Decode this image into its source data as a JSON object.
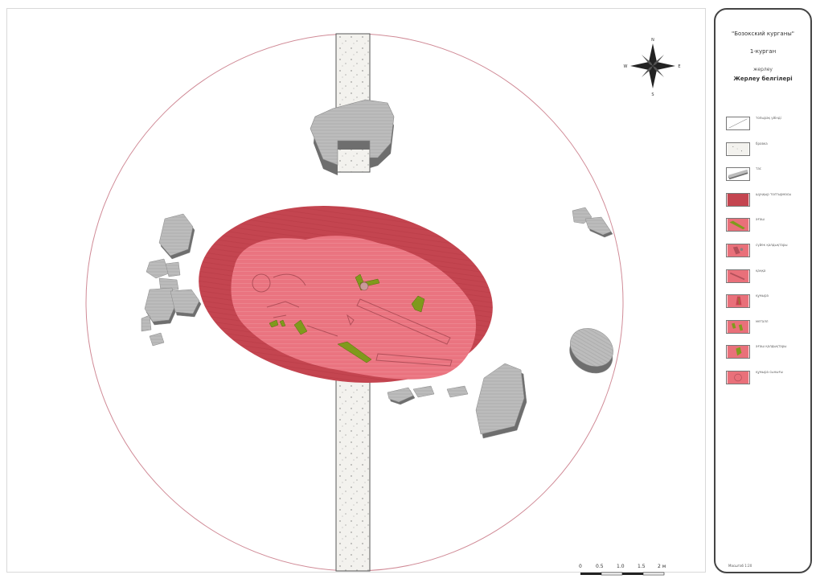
{
  "legend": {
    "site": "\"Бозокский курганы\"",
    "kurgan": "1-курган",
    "grave": "жерлеу",
    "title": "Жерлеу белгілері",
    "items": [
      {
        "label": "топырақ үйінді",
        "swatch": "soil-mound"
      },
      {
        "label": "бровка",
        "swatch": "balk"
      },
      {
        "label": "тас",
        "swatch": "stone"
      },
      {
        "label": "шұңқыр толтырмасы",
        "swatch": "pit-fill"
      },
      {
        "label": "ағаш",
        "swatch": "wood"
      },
      {
        "label": "сүйек қалдықтары",
        "swatch": "bone-remains"
      },
      {
        "label": "қаңқа",
        "swatch": "skeleton"
      },
      {
        "label": "құмыра",
        "swatch": "vessel"
      },
      {
        "label": "металл",
        "swatch": "metal"
      },
      {
        "label": "ағаш қалдықтары",
        "swatch": "wood-remains"
      },
      {
        "label": "құмыра сынығы",
        "swatch": "sherd"
      }
    ],
    "scale_note": "Масштаб 1:20"
  },
  "scale_bar": {
    "ticks": [
      "0",
      "0.5",
      "1.0",
      "1.5",
      "2 м"
    ]
  },
  "north_arrow": {
    "n": "N",
    "s": "S",
    "e": "E",
    "w": "W"
  },
  "colors": {
    "outer_fill": "#c7454f",
    "inner_fill": "#e9707a",
    "stone_fill": "#b9b9b9",
    "stone_shadow": "#6e6e6e",
    "wood": "#7f9a1c",
    "circle_stroke": "#d08a96"
  }
}
